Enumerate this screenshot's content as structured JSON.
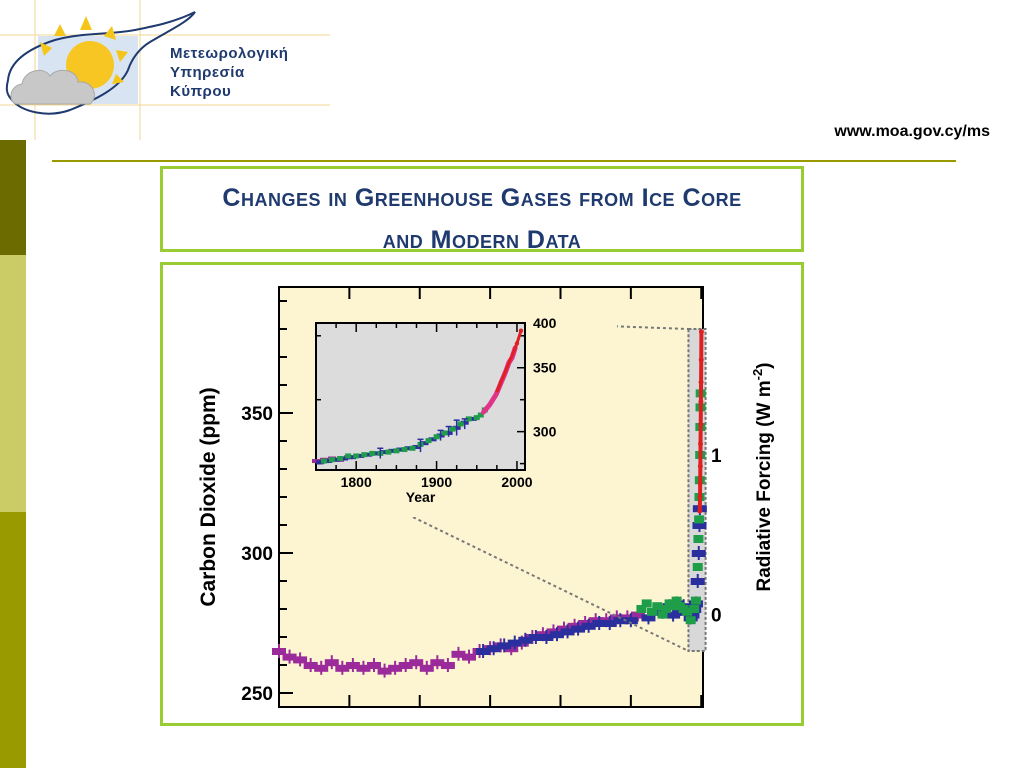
{
  "header": {
    "org_lines": [
      "Μετεωρολογική",
      "Υπηρεσία",
      "Κύπρου"
    ],
    "url": "www.moa.gov.cy/ms"
  },
  "slide": {
    "title_line1": "Changes in Greenhouse Gases from Ice Core",
    "title_line2": "and Modern Data"
  },
  "colors": {
    "accent_green": "#99cc33",
    "band_dark": "#6b6b00",
    "band_light": "#cccc66",
    "band_mid": "#999900",
    "title_blue": "#1f3a6e",
    "plot_bg": "#fdf5d2",
    "inset_bg": "#dcdcdc",
    "series_purple": "#9b2a9b",
    "series_blue": "#2b2f9e",
    "series_green": "#1f9e4a",
    "series_red": "#e02020",
    "series_pink": "#e0338a"
  },
  "chart_data": [
    {
      "type": "scatter",
      "ylabel": "Carbon Dioxide (ppm)",
      "y2label_main": "Radiative Forcing (W m",
      "y2label_sup": "-2",
      "y2label_close": ")",
      "ylim": [
        245,
        395
      ],
      "yticks": [
        250,
        300,
        350
      ],
      "y2ticks": [
        {
          "label": "0",
          "co2": 278
        },
        {
          "label": "1",
          "co2": 335
        }
      ],
      "xlim": [
        -10000,
        2050
      ],
      "series": [
        {
          "color": "purple",
          "points": [
            [
              -10000,
              265
            ],
            [
              -9700,
              263
            ],
            [
              -9400,
              262
            ],
            [
              -9100,
              260
            ],
            [
              -8800,
              259
            ],
            [
              -8500,
              261
            ],
            [
              -8200,
              259
            ],
            [
              -7900,
              260
            ],
            [
              -7600,
              259
            ],
            [
              -7300,
              260
            ],
            [
              -7000,
              258
            ],
            [
              -6700,
              259
            ],
            [
              -6400,
              260
            ],
            [
              -6100,
              261
            ],
            [
              -5800,
              259
            ],
            [
              -5500,
              261
            ],
            [
              -5200,
              260
            ],
            [
              -4900,
              264
            ],
            [
              -4600,
              263
            ],
            [
              -4300,
              265
            ],
            [
              -4000,
              266
            ],
            [
              -3700,
              267
            ],
            [
              -3400,
              266
            ],
            [
              -3100,
              268
            ],
            [
              -2800,
              270
            ],
            [
              -2500,
              271
            ],
            [
              -2200,
              272
            ],
            [
              -1900,
              273
            ],
            [
              -1600,
              274
            ],
            [
              -1300,
              275
            ],
            [
              -1000,
              276
            ],
            [
              -700,
              276
            ],
            [
              -400,
              277
            ],
            [
              -100,
              277
            ],
            [
              200,
              278
            ]
          ]
        },
        {
          "color": "blue",
          "points": [
            [
              -4200,
              265
            ],
            [
              -3900,
              266
            ],
            [
              -3600,
              267
            ],
            [
              -3300,
              268
            ],
            [
              -3000,
              269
            ],
            [
              -2700,
              270
            ],
            [
              -2400,
              270
            ],
            [
              -2100,
              271
            ],
            [
              -1800,
              272
            ],
            [
              -1500,
              273
            ],
            [
              -1200,
              274
            ],
            [
              -900,
              275
            ],
            [
              -600,
              275
            ],
            [
              -300,
              276
            ],
            [
              0,
              276
            ],
            [
              500,
              277
            ],
            [
              900,
              279
            ],
            [
              1100,
              281
            ],
            [
              1200,
              278
            ],
            [
              1300,
              282
            ],
            [
              1400,
              280
            ],
            [
              1500,
              281
            ],
            [
              1600,
              279
            ],
            [
              1700,
              277
            ],
            [
              1750,
              278
            ],
            [
              1800,
              280
            ],
            [
              1850,
              282
            ],
            [
              1900,
              290
            ],
            [
              1930,
              300
            ],
            [
              1950,
              310
            ],
            [
              1960,
              316
            ]
          ]
        },
        {
          "color": "green",
          "points": [
            [
              300,
              280
            ],
            [
              450,
              282
            ],
            [
              600,
              279
            ],
            [
              750,
              281
            ],
            [
              900,
              278
            ],
            [
              1000,
              280
            ],
            [
              1100,
              282
            ],
            [
              1200,
              281
            ],
            [
              1300,
              283
            ],
            [
              1400,
              281
            ],
            [
              1500,
              280
            ],
            [
              1600,
              279
            ],
            [
              1700,
              276
            ],
            [
              1800,
              280
            ],
            [
              1850,
              283
            ],
            [
              1900,
              295
            ],
            [
              1920,
              305
            ],
            [
              1940,
              312
            ],
            [
              1950,
              320
            ],
            [
              1960,
              326
            ],
            [
              1970,
              335
            ],
            [
              1975,
              345
            ],
            [
              1980,
              352
            ],
            [
              1985,
              357
            ]
          ]
        },
        {
          "color": "red",
          "points": [
            [
              1958,
              315
            ],
            [
              1965,
              320
            ],
            [
              1970,
              325
            ],
            [
              1975,
              331
            ],
            [
              1980,
              339
            ],
            [
              1985,
              346
            ],
            [
              1990,
              354
            ],
            [
              1995,
              361
            ],
            [
              2000,
              369
            ],
            [
              2005,
              379
            ]
          ]
        }
      ],
      "zoom_box": {
        "x": [
          1750,
          2010
        ],
        "y": [
          265,
          380
        ]
      }
    },
    {
      "type": "scatter",
      "xlabel": "Year",
      "xlim": [
        1750,
        2010
      ],
      "ylim": [
        270,
        385
      ],
      "xticks": [
        1800,
        1900,
        2000
      ],
      "yticks": [
        300,
        350,
        400
      ],
      "series": [
        {
          "color": "purple",
          "points": [
            [
              1750,
              277
            ],
            [
              1760,
              278
            ],
            [
              1770,
              279
            ],
            [
              1780,
              278
            ],
            [
              1790,
              280
            ]
          ]
        },
        {
          "color": "blue",
          "points": [
            [
              1755,
              276
            ],
            [
              1765,
              277
            ],
            [
              1775,
              278
            ],
            [
              1785,
              279
            ],
            [
              1795,
              280
            ],
            [
              1805,
              281
            ],
            [
              1815,
              282
            ],
            [
              1825,
              283
            ],
            [
              1835,
              284
            ],
            [
              1845,
              285
            ],
            [
              1855,
              286
            ],
            [
              1865,
              287
            ],
            [
              1875,
              288
            ],
            [
              1885,
              291
            ],
            [
              1895,
              294
            ],
            [
              1905,
              297
            ],
            [
              1915,
              299
            ],
            [
              1925,
              303
            ],
            [
              1935,
              307
            ],
            [
              1945,
              310
            ]
          ]
        },
        {
          "color": "green",
          "points": [
            [
              1760,
              277
            ],
            [
              1770,
              278
            ],
            [
              1780,
              279
            ],
            [
              1790,
              281
            ],
            [
              1800,
              281
            ],
            [
              1810,
              282
            ],
            [
              1820,
              283
            ],
            [
              1830,
              283
            ],
            [
              1840,
              284
            ],
            [
              1850,
              285
            ],
            [
              1860,
              286
            ],
            [
              1870,
              287
            ],
            [
              1880,
              290
            ],
            [
              1890,
              293
            ],
            [
              1900,
              296
            ],
            [
              1910,
              299
            ],
            [
              1920,
              302
            ],
            [
              1930,
              306
            ],
            [
              1940,
              310
            ],
            [
              1950,
              311
            ],
            [
              1955,
              313
            ],
            [
              1960,
              317
            ]
          ]
        },
        {
          "color": "pink",
          "points": [
            [
              1958,
              315
            ],
            [
              1962,
              318
            ],
            [
              1966,
              321
            ],
            [
              1970,
              325
            ],
            [
              1974,
              329
            ],
            [
              1978,
              335
            ],
            [
              1982,
              341
            ],
            [
              1986,
              347
            ],
            [
              1990,
              354
            ],
            [
              1994,
              358
            ],
            [
              1998,
              366
            ]
          ]
        },
        {
          "color": "red",
          "points": [
            [
              1975,
              331
            ],
            [
              1980,
              339
            ],
            [
              1985,
              346
            ],
            [
              1990,
              354
            ],
            [
              1995,
              361
            ],
            [
              2000,
              369
            ],
            [
              2005,
              379
            ]
          ]
        }
      ],
      "error_bars": [
        [
          1830,
          283,
          4
        ],
        [
          1880,
          289,
          5
        ],
        [
          1905,
          297,
          4
        ],
        [
          1915,
          300,
          4
        ],
        [
          1925,
          303,
          6
        ],
        [
          1935,
          306,
          4
        ]
      ]
    }
  ]
}
